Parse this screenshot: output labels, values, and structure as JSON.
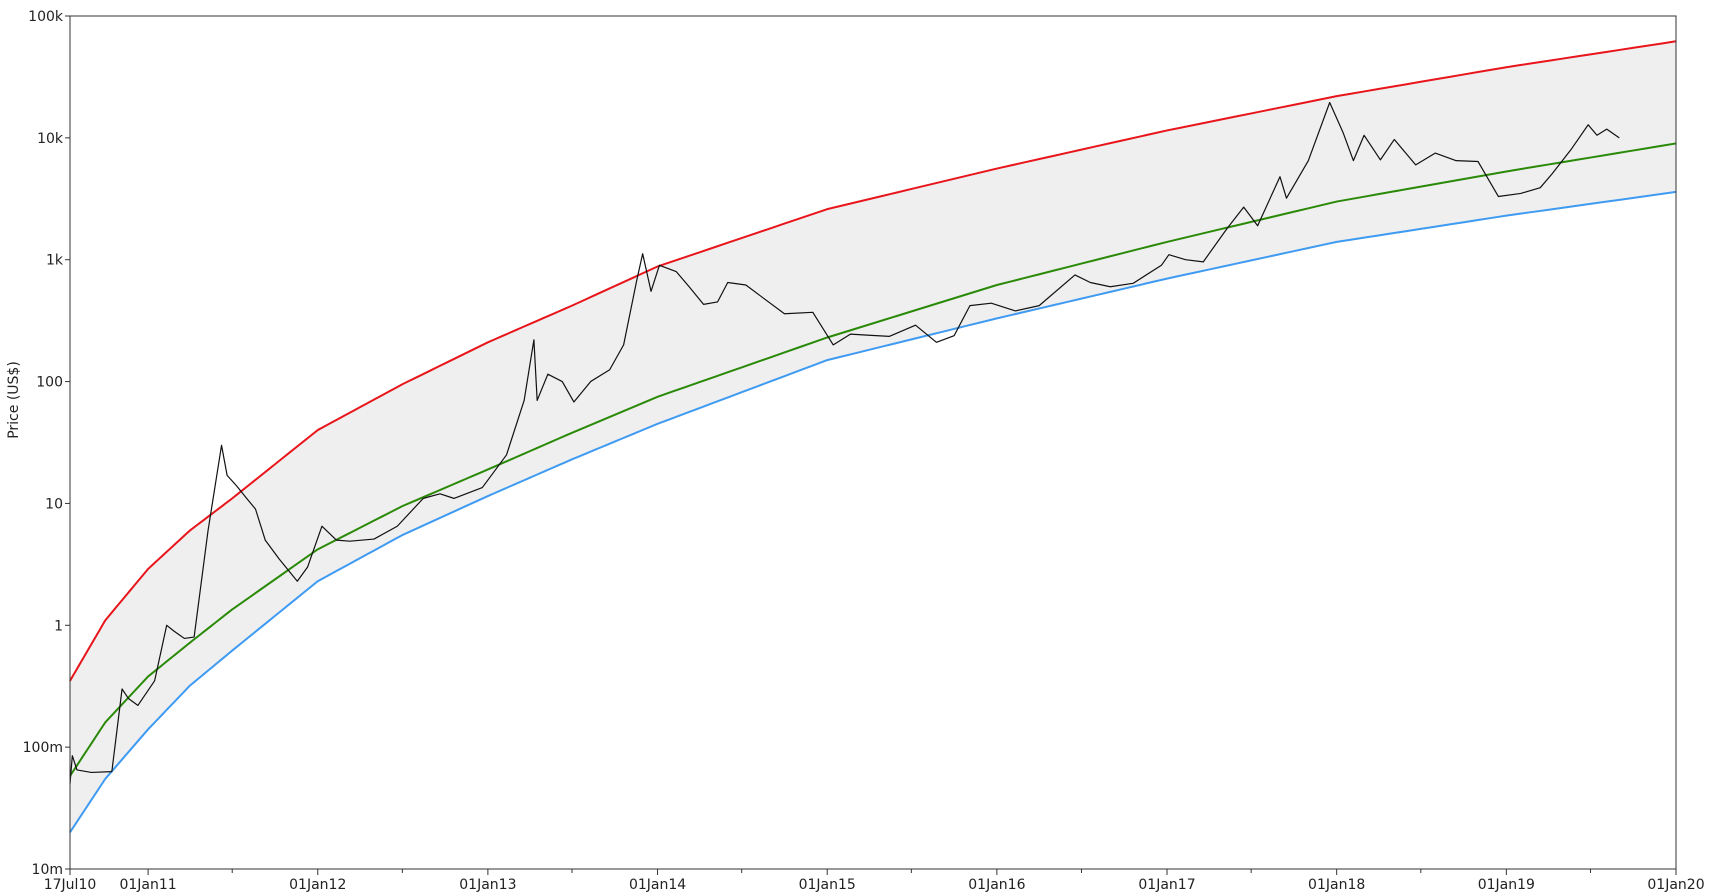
{
  "chart_data": {
    "type": "line",
    "title": "",
    "xlabel": "",
    "ylabel": "Price (US$)",
    "y_scale": "log",
    "ylim": [
      0.01,
      100000
    ],
    "xlim": [
      "2010-07-17",
      "2020-01-01"
    ],
    "grid": false,
    "band_fill": "#efefef",
    "y_ticks": [
      {
        "value": 0.01,
        "label": "10m"
      },
      {
        "value": 0.1,
        "label": "100m"
      },
      {
        "value": 1,
        "label": "1"
      },
      {
        "value": 10,
        "label": "10"
      },
      {
        "value": 100,
        "label": "100"
      },
      {
        "value": 1000,
        "label": "1k"
      },
      {
        "value": 10000,
        "label": "10k"
      },
      {
        "value": 100000,
        "label": "100k"
      }
    ],
    "x_ticks": [
      {
        "date": "2010-07-17",
        "label": "17Jul10"
      },
      {
        "date": "2011-01-01",
        "label": "01Jan11"
      },
      {
        "date": "2012-01-01",
        "label": "01Jan12"
      },
      {
        "date": "2013-01-01",
        "label": "01Jan13"
      },
      {
        "date": "2014-01-01",
        "label": "01Jan14"
      },
      {
        "date": "2015-01-01",
        "label": "01Jan15"
      },
      {
        "date": "2016-01-01",
        "label": "01Jan16"
      },
      {
        "date": "2017-01-01",
        "label": "01Jan17"
      },
      {
        "date": "2018-01-01",
        "label": "01Jan18"
      },
      {
        "date": "2019-01-01",
        "label": "01Jan19"
      },
      {
        "date": "2020-01-01",
        "label": "01Jan20"
      }
    ],
    "x_minor_ticks": [
      "2011-07-01",
      "2012-07-01",
      "2013-07-01",
      "2014-07-01",
      "2015-07-01",
      "2016-07-01",
      "2017-07-01",
      "2018-07-01",
      "2019-07-01"
    ],
    "series": [
      {
        "color": "#e8151b",
        "points": [
          [
            "2010-07-17",
            0.35
          ],
          [
            "2010-10-01",
            1.1
          ],
          [
            "2011-01-01",
            2.9
          ],
          [
            "2011-04-01",
            6.0
          ],
          [
            "2011-07-01",
            11
          ],
          [
            "2012-01-01",
            40
          ],
          [
            "2012-07-01",
            95
          ],
          [
            "2013-01-01",
            210
          ],
          [
            "2013-07-01",
            420
          ],
          [
            "2014-01-01",
            880
          ],
          [
            "2015-01-01",
            2600
          ],
          [
            "2016-01-01",
            5600
          ],
          [
            "2017-01-01",
            11500
          ],
          [
            "2018-01-01",
            22000
          ],
          [
            "2019-01-01",
            38000
          ],
          [
            "2020-01-01",
            62000
          ]
        ]
      },
      {
        "color": "#2a8a08",
        "points": [
          [
            "2010-07-17",
            0.058
          ],
          [
            "2010-10-01",
            0.16
          ],
          [
            "2011-01-01",
            0.38
          ],
          [
            "2011-04-01",
            0.72
          ],
          [
            "2011-07-01",
            1.35
          ],
          [
            "2012-01-01",
            4.2
          ],
          [
            "2012-07-01",
            9.5
          ],
          [
            "2013-01-01",
            19
          ],
          [
            "2013-07-01",
            38
          ],
          [
            "2014-01-01",
            75
          ],
          [
            "2015-01-01",
            230
          ],
          [
            "2016-01-01",
            620
          ],
          [
            "2017-01-01",
            1400
          ],
          [
            "2018-01-01",
            3000
          ],
          [
            "2019-01-01",
            5300
          ],
          [
            "2020-01-01",
            9000
          ]
        ]
      },
      {
        "color": "#3f9bf2",
        "points": [
          [
            "2010-07-17",
            0.02
          ],
          [
            "2010-10-01",
            0.055
          ],
          [
            "2011-01-01",
            0.14
          ],
          [
            "2011-04-01",
            0.32
          ],
          [
            "2011-07-01",
            0.62
          ],
          [
            "2012-01-01",
            2.3
          ],
          [
            "2012-07-01",
            5.5
          ],
          [
            "2013-01-01",
            11.5
          ],
          [
            "2013-07-01",
            23
          ],
          [
            "2014-01-01",
            45
          ],
          [
            "2015-01-01",
            150
          ],
          [
            "2016-01-01",
            330
          ],
          [
            "2017-01-01",
            700
          ],
          [
            "2018-01-01",
            1400
          ],
          [
            "2019-01-01",
            2300
          ],
          [
            "2020-01-01",
            3600
          ]
        ]
      },
      {
        "color": "#111111",
        "points": [
          [
            "2010-07-17",
            0.05
          ],
          [
            "2010-07-22",
            0.085
          ],
          [
            "2010-08-01",
            0.065
          ],
          [
            "2010-09-01",
            0.062
          ],
          [
            "2010-10-15",
            0.063
          ],
          [
            "2010-11-06",
            0.3
          ],
          [
            "2010-11-20",
            0.25
          ],
          [
            "2010-12-10",
            0.22
          ],
          [
            "2011-01-15",
            0.35
          ],
          [
            "2011-02-10",
            1.0
          ],
          [
            "2011-02-25",
            0.9
          ],
          [
            "2011-03-20",
            0.78
          ],
          [
            "2011-04-10",
            0.8
          ],
          [
            "2011-05-10",
            6.0
          ],
          [
            "2011-06-08",
            30
          ],
          [
            "2011-06-20",
            17
          ],
          [
            "2011-07-10",
            14
          ],
          [
            "2011-08-01",
            11
          ],
          [
            "2011-08-20",
            9
          ],
          [
            "2011-09-10",
            5
          ],
          [
            "2011-10-10",
            3.5
          ],
          [
            "2011-11-18",
            2.3
          ],
          [
            "2011-12-10",
            3.0
          ],
          [
            "2012-01-10",
            6.5
          ],
          [
            "2012-02-10",
            5.0
          ],
          [
            "2012-03-10",
            4.9
          ],
          [
            "2012-05-01",
            5.1
          ],
          [
            "2012-06-20",
            6.5
          ],
          [
            "2012-08-15",
            11
          ],
          [
            "2012-09-20",
            12
          ],
          [
            "2012-10-20",
            11
          ],
          [
            "2012-12-20",
            13.5
          ],
          [
            "2013-02-10",
            25
          ],
          [
            "2013-03-20",
            70
          ],
          [
            "2013-04-10",
            220
          ],
          [
            "2013-04-17",
            70
          ],
          [
            "2013-05-10",
            115
          ],
          [
            "2013-06-10",
            100
          ],
          [
            "2013-07-05",
            68
          ],
          [
            "2013-08-10",
            100
          ],
          [
            "2013-09-20",
            125
          ],
          [
            "2013-10-20",
            200
          ],
          [
            "2013-11-18",
            700
          ],
          [
            "2013-11-30",
            1120
          ],
          [
            "2013-12-18",
            550
          ],
          [
            "2014-01-05",
            900
          ],
          [
            "2014-02-10",
            800
          ],
          [
            "2014-03-10",
            600
          ],
          [
            "2014-04-10",
            430
          ],
          [
            "2014-05-10",
            450
          ],
          [
            "2014-06-01",
            650
          ],
          [
            "2014-07-10",
            620
          ],
          [
            "2014-08-18",
            480
          ],
          [
            "2014-10-01",
            360
          ],
          [
            "2014-12-01",
            370
          ],
          [
            "2015-01-14",
            200
          ],
          [
            "2015-02-20",
            245
          ],
          [
            "2015-04-01",
            240
          ],
          [
            "2015-05-15",
            235
          ],
          [
            "2015-07-10",
            290
          ],
          [
            "2015-08-24",
            210
          ],
          [
            "2015-10-01",
            238
          ],
          [
            "2015-11-04",
            420
          ],
          [
            "2015-12-20",
            440
          ],
          [
            "2016-02-10",
            380
          ],
          [
            "2016-04-01",
            420
          ],
          [
            "2016-06-17",
            750
          ],
          [
            "2016-07-20",
            650
          ],
          [
            "2016-09-01",
            600
          ],
          [
            "2016-10-20",
            640
          ],
          [
            "2016-12-20",
            900
          ],
          [
            "2017-01-05",
            1100
          ],
          [
            "2017-02-10",
            1000
          ],
          [
            "2017-03-20",
            960
          ],
          [
            "2017-05-10",
            1800
          ],
          [
            "2017-06-15",
            2700
          ],
          [
            "2017-07-15",
            1900
          ],
          [
            "2017-09-01",
            4800
          ],
          [
            "2017-09-15",
            3200
          ],
          [
            "2017-11-01",
            6500
          ],
          [
            "2017-12-17",
            19500
          ],
          [
            "2018-01-15",
            11000
          ],
          [
            "2018-02-06",
            6500
          ],
          [
            "2018-03-01",
            10500
          ],
          [
            "2018-04-05",
            6600
          ],
          [
            "2018-05-05",
            9700
          ],
          [
            "2018-06-20",
            6000
          ],
          [
            "2018-08-01",
            7500
          ],
          [
            "2018-09-15",
            6500
          ],
          [
            "2018-11-01",
            6400
          ],
          [
            "2018-12-15",
            3300
          ],
          [
            "2019-02-01",
            3500
          ],
          [
            "2019-03-15",
            3900
          ],
          [
            "2019-04-10",
            5100
          ],
          [
            "2019-05-20",
            8000
          ],
          [
            "2019-06-26",
            12800
          ],
          [
            "2019-07-15",
            10500
          ],
          [
            "2019-08-05",
            11800
          ],
          [
            "2019-09-01",
            10000
          ]
        ]
      }
    ]
  }
}
